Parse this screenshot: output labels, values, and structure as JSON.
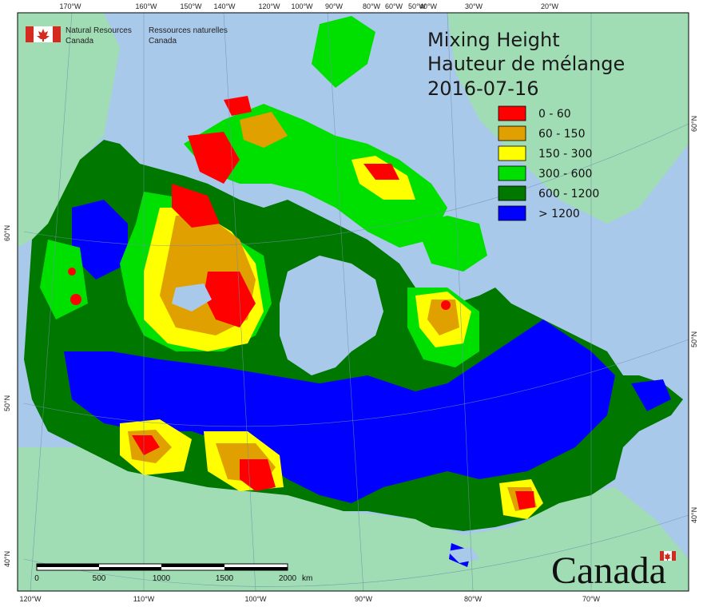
{
  "map": {
    "title_en": "Mixing Height",
    "title_fr": "Hauteur de mélange",
    "date": "2016-07-16"
  },
  "agency": {
    "name_en_line1": "Natural Resources",
    "name_en_line2": "Canada",
    "name_fr_line1": "Ressources naturelles",
    "name_fr_line2": "Canada"
  },
  "wordmark": "Canada",
  "legend": {
    "items": [
      {
        "label": "0 - 60",
        "color": "#ff0000"
      },
      {
        "label": "60 - 150",
        "color": "#e0a000"
      },
      {
        "label": "150 - 300",
        "color": "#ffff00"
      },
      {
        "label": "300 - 600",
        "color": "#00e000"
      },
      {
        "label": "600 - 1200",
        "color": "#007800"
      },
      {
        "label": "> 1200",
        "color": "#0000ff"
      }
    ]
  },
  "graticule": {
    "top_labels": [
      "170°W",
      "160°W",
      "150°W",
      "140°W",
      "120°W",
      "100°W",
      "90°W",
      "80°W",
      "60°W",
      "50°W",
      "40°W",
      "30°W",
      "20°W"
    ],
    "bottom_labels": [
      "120°W",
      "110°W",
      "100°W",
      "90°W",
      "80°W",
      "70°W"
    ],
    "left_labels": [
      "60°N",
      "50°N",
      "40°N"
    ],
    "right_labels": [
      "60°N",
      "50°N",
      "40°N"
    ]
  },
  "scale_bar": {
    "labels": [
      "0",
      "500",
      "1000",
      "1500",
      "2000"
    ],
    "unit": "km"
  },
  "colors": {
    "ocean": "#a9c9ea",
    "land_outside": "#a0dcb4",
    "lake": "#a9c9ea"
  }
}
